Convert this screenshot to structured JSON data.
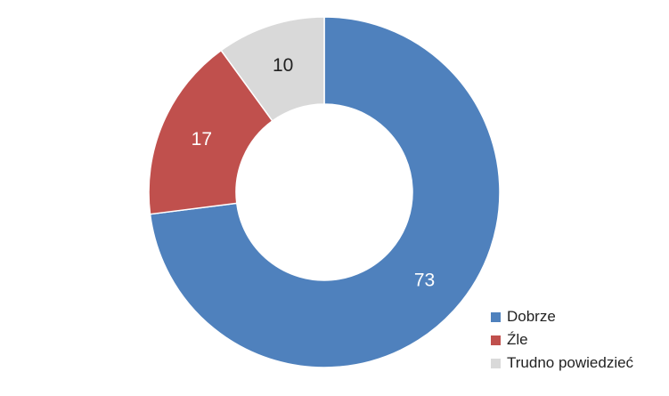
{
  "chart_data": {
    "type": "pie",
    "variant": "donut",
    "categories": [
      "Dobrze",
      "Źle",
      "Trudno powiedzieć"
    ],
    "values": [
      73,
      17,
      10
    ],
    "data_labels": [
      "73",
      "17",
      "10"
    ],
    "colors": [
      "#4f81bd",
      "#c0504d",
      "#d9d9d9"
    ],
    "label_colors": [
      "#ffffff",
      "#ffffff",
      "#222222"
    ],
    "start": "12 o'clock, clockwise",
    "legend": "bottom-right"
  }
}
